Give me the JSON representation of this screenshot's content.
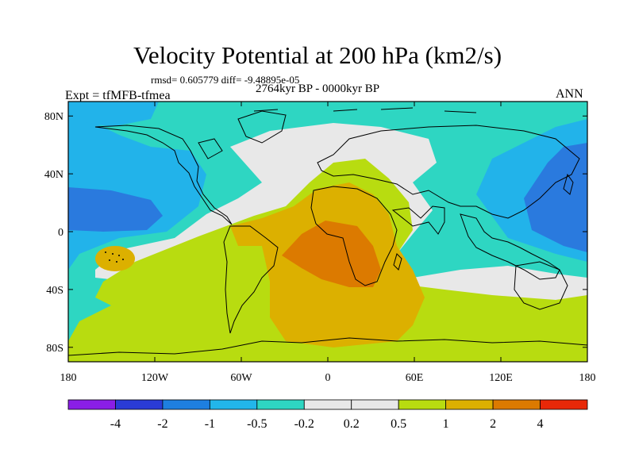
{
  "title": "Velocity Potential at 200 hPa (km2/s)",
  "stats_line": "rmsd= 0.605779 diff= -9.48895e-05",
  "period": "2764kyr BP - 0000kyr BP",
  "experiment": "Expt = tfMFB-tfmea",
  "season": "ANN",
  "lat_ticks": [
    "80N",
    "40N",
    "0",
    "40S",
    "80S"
  ],
  "lon_ticks": [
    "180",
    "120W",
    "60W",
    "0",
    "60E",
    "120E",
    "180"
  ],
  "colorbar": {
    "labels": [
      "-4",
      "-2",
      "-1",
      "-0.5",
      "-0.2",
      "0.2",
      "0.5",
      "1",
      "2",
      "4"
    ],
    "colors": [
      "#8a1ee6",
      "#2a3bd6",
      "#1e7fe0",
      "#22b6ea",
      "#2ed6c2",
      "#e8e8e8",
      "#b8dc10",
      "#dcb000",
      "#dc7a00",
      "#e82808"
    ]
  },
  "palette": {
    "blue_dark": "#2a7ade",
    "blue_mid": "#22b3ea",
    "teal": "#2ed6c2",
    "neutral": "#e8e8e8",
    "green": "#b8dc10",
    "gold": "#dcb000",
    "orange": "#dc7a00",
    "coast": "#000000"
  }
}
